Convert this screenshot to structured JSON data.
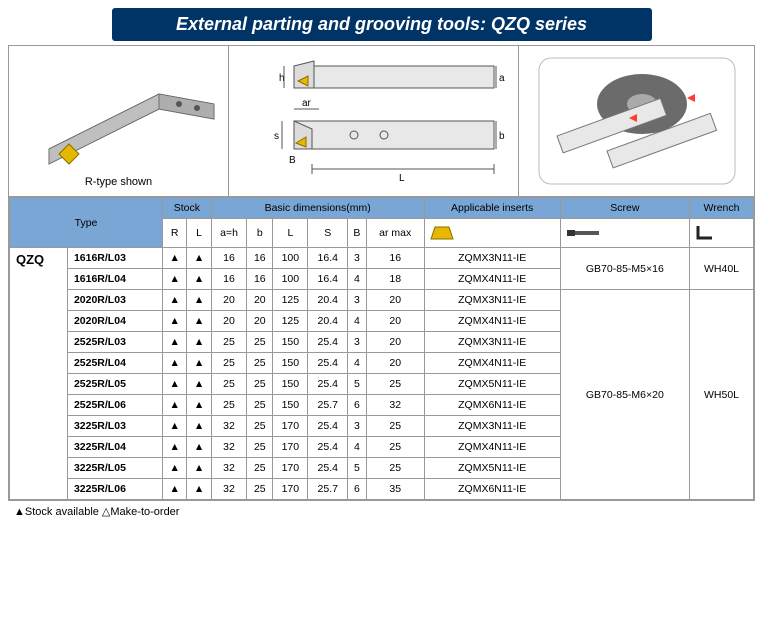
{
  "title": "External parting and grooving tools: QZQ series",
  "caption_iso": "R-type shown",
  "dim_labels": {
    "h": "h",
    "a": "a",
    "ar": "ar",
    "s": "s",
    "B": "B",
    "b": "b",
    "L": "L"
  },
  "headers": {
    "type": "Type",
    "stock": "Stock",
    "basic": "Basic dimensions(mm)",
    "inserts": "Applicable inserts",
    "screw": "Screw",
    "wrench": "Wrench",
    "R": "R",
    "L": "L",
    "ah": "a=h",
    "b": "b",
    "Lcol": "L",
    "S": "S",
    "Bcol": "B",
    "armax": "ar max"
  },
  "series": "QZQ",
  "stock_mark": "▲",
  "rows": [
    {
      "type": "1616R/L03",
      "ah": 16,
      "b": 16,
      "L": 100,
      "S": 16.4,
      "B": 3,
      "armax": 16,
      "insert": "ZQMX3N11-IE"
    },
    {
      "type": "1616R/L04",
      "ah": 16,
      "b": 16,
      "L": 100,
      "S": 16.4,
      "B": 4,
      "armax": 18,
      "insert": "ZQMX4N11-IE"
    },
    {
      "type": "2020R/L03",
      "ah": 20,
      "b": 20,
      "L": 125,
      "S": 20.4,
      "B": 3,
      "armax": 20,
      "insert": "ZQMX3N11-IE"
    },
    {
      "type": "2020R/L04",
      "ah": 20,
      "b": 20,
      "L": 125,
      "S": 20.4,
      "B": 4,
      "armax": 20,
      "insert": "ZQMX4N11-IE"
    },
    {
      "type": "2525R/L03",
      "ah": 25,
      "b": 25,
      "L": 150,
      "S": 25.4,
      "B": 3,
      "armax": 20,
      "insert": "ZQMX3N11-IE"
    },
    {
      "type": "2525R/L04",
      "ah": 25,
      "b": 25,
      "L": 150,
      "S": 25.4,
      "B": 4,
      "armax": 20,
      "insert": "ZQMX4N11-IE"
    },
    {
      "type": "2525R/L05",
      "ah": 25,
      "b": 25,
      "L": 150,
      "S": 25.4,
      "B": 5,
      "armax": 25,
      "insert": "ZQMX5N11-IE"
    },
    {
      "type": "2525R/L06",
      "ah": 25,
      "b": 25,
      "L": 150,
      "S": 25.7,
      "B": 6,
      "armax": 32,
      "insert": "ZQMX6N11-IE"
    },
    {
      "type": "3225R/L03",
      "ah": 32,
      "b": 25,
      "L": 170,
      "S": 25.4,
      "B": 3,
      "armax": 25,
      "insert": "ZQMX3N11-IE"
    },
    {
      "type": "3225R/L04",
      "ah": 32,
      "b": 25,
      "L": 170,
      "S": 25.4,
      "B": 4,
      "armax": 25,
      "insert": "ZQMX4N11-IE"
    },
    {
      "type": "3225R/L05",
      "ah": 32,
      "b": 25,
      "L": 170,
      "S": 25.4,
      "B": 5,
      "armax": 25,
      "insert": "ZQMX5N11-IE"
    },
    {
      "type": "3225R/L06",
      "ah": 32,
      "b": 25,
      "L": 170,
      "S": 25.7,
      "B": 6,
      "armax": 35,
      "insert": "ZQMX6N11-IE"
    }
  ],
  "screw_groups": [
    {
      "span": 2,
      "value": "GB70-85-M5×16"
    },
    {
      "span": 10,
      "value": "GB70-85-M6×20"
    }
  ],
  "wrench_groups": [
    {
      "span": 2,
      "value": "WH40L"
    },
    {
      "span": 10,
      "value": "WH50L"
    }
  ],
  "legend": "▲Stock available      △Make-to-order",
  "colors": {
    "title_bg": "#003366",
    "header_blue": "#7aa6d6",
    "border": "#999999",
    "insert_yellow": "#e6b800",
    "tool_gray": "#bfbfbf",
    "tool_dark": "#555555"
  }
}
